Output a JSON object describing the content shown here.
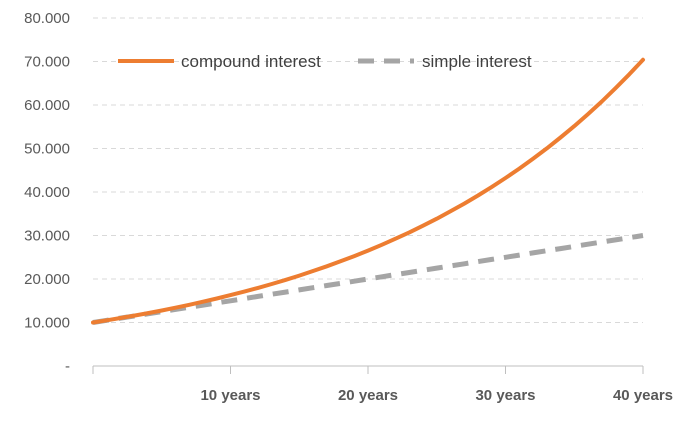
{
  "chart_data": {
    "type": "line",
    "x": [
      0,
      1,
      2,
      3,
      4,
      5,
      6,
      7,
      8,
      9,
      10,
      11,
      12,
      13,
      14,
      15,
      16,
      17,
      18,
      19,
      20,
      21,
      22,
      23,
      24,
      25,
      26,
      27,
      28,
      29,
      30,
      31,
      32,
      33,
      34,
      35,
      36,
      37,
      38,
      39,
      40
    ],
    "x_tick_values": [
      10,
      20,
      30,
      40
    ],
    "x_tick_labels": [
      "10 years",
      "20 years",
      "30 years",
      "40 years"
    ],
    "xlim": [
      0,
      40
    ],
    "ylim": [
      0,
      80000
    ],
    "y_tick_values": [
      0,
      10000,
      20000,
      30000,
      40000,
      50000,
      60000,
      70000,
      80000
    ],
    "y_tick_labels": [
      "-",
      "10.000",
      "20.000",
      "30.000",
      "40.000",
      "50.000",
      "60.000",
      "70.000",
      "80.000"
    ],
    "grid": true,
    "legend_position": "top-left",
    "series": [
      {
        "name": "compound interest",
        "color": "#ed7d31",
        "style": "solid",
        "values": [
          10000,
          10500,
          11025,
          11576,
          12155,
          12763,
          13401,
          14071,
          14775,
          15513,
          16289,
          17103,
          17959,
          18856,
          19799,
          20789,
          21829,
          22920,
          24066,
          25270,
          26533,
          27860,
          29253,
          30715,
          32251,
          33864,
          35557,
          37335,
          39201,
          41161,
          43219,
          45380,
          47649,
          50032,
          52533,
          55160,
          57918,
          60814,
          63855,
          67048,
          70400
        ]
      },
      {
        "name": "simple interest",
        "color": "#a5a5a5",
        "style": "dashed",
        "values": [
          10000,
          10500,
          11000,
          11500,
          12000,
          12500,
          13000,
          13500,
          14000,
          14500,
          15000,
          15500,
          16000,
          16500,
          17000,
          17500,
          18000,
          18500,
          19000,
          19500,
          20000,
          20500,
          21000,
          21500,
          22000,
          22500,
          23000,
          23500,
          24000,
          24500,
          25000,
          25500,
          26000,
          26500,
          27000,
          27500,
          28000,
          28500,
          29000,
          29500,
          30000
        ]
      }
    ]
  }
}
